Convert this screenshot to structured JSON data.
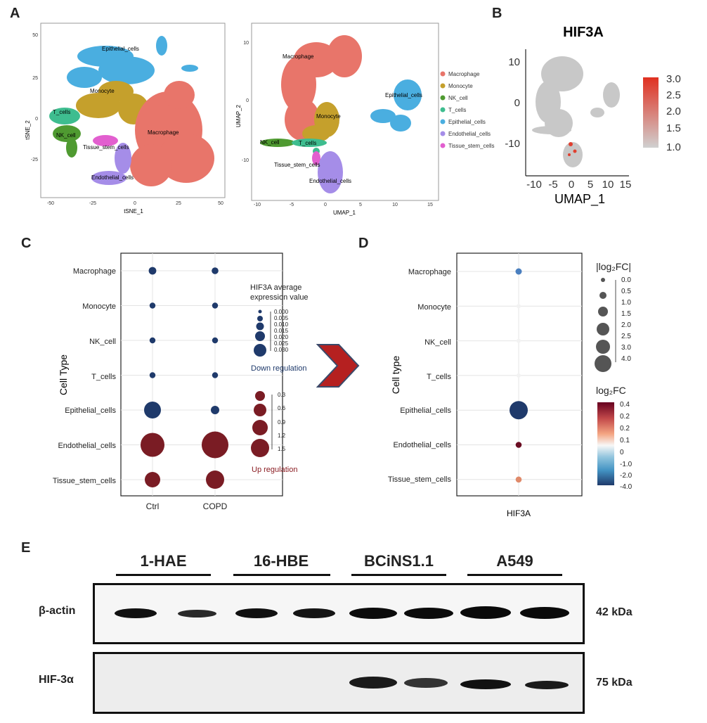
{
  "panels": {
    "a": "A",
    "b": "B",
    "c": "C",
    "d": "D",
    "e": "E"
  },
  "tsne": {
    "xlabel": "tSNE_1",
    "ylabel": "tSNE_2",
    "xticks": [
      "-50",
      "-25",
      "0",
      "25",
      "50"
    ],
    "yticks": [
      "50",
      "25",
      "0",
      "-25"
    ]
  },
  "umap": {
    "xlabel": "UMAP_1",
    "ylabel": "UMAP_2",
    "xticks": [
      "-10",
      "-5",
      "0",
      "5",
      "10",
      "15"
    ],
    "yticks": [
      "10",
      "0",
      "-10"
    ]
  },
  "cluster_labels": [
    "Macrophage",
    "Monocyte",
    "NK_cell",
    "T_cells",
    "Epithelial_cells",
    "Endothelial_cells",
    "Tissue_stem_cells"
  ],
  "cluster_colors": [
    "#e8756a",
    "#c5a02c",
    "#4f9a31",
    "#3ebd8f",
    "#4aaee0",
    "#a58de8",
    "#e25fcf"
  ],
  "panel_b": {
    "title": "HIF3A",
    "xlabel": "UMAP_1",
    "xticks": [
      "-10",
      "-5",
      "0",
      "5",
      "10",
      "15"
    ],
    "yticks": [
      "10",
      "0",
      "-10"
    ],
    "colorbar_ticks": [
      "3.0",
      "2.5",
      "2.0",
      "1.5",
      "1.0"
    ]
  },
  "panel_c": {
    "ylabel": "Cell Type",
    "categories": [
      "Macrophage",
      "Monocyte",
      "NK_cell",
      "T_cells",
      "Epithelial_cells",
      "Endothelial_cells",
      "Tissue_stem_cells"
    ],
    "xcategories": [
      "Ctrl",
      "COPD"
    ],
    "size_legend_title_1": "HIF3A average",
    "size_legend_title_2": "expression value",
    "down_ticks": [
      "0.000",
      "0.005",
      "0.010",
      "0.015",
      "0.020",
      "0.025",
      "0.030"
    ],
    "down_label": "Down regulation",
    "up_ticks": [
      "0.3",
      "0.6",
      "0.9",
      "1.2",
      "1.5"
    ],
    "up_label": "Up regulation"
  },
  "panel_d": {
    "ylabel": "Cell type",
    "xcategory": "HIF3A",
    "size_legend_title": "|log₂FC|",
    "size_ticks": [
      "0.0",
      "0.5",
      "1.0",
      "1.5",
      "2.0",
      "2.5",
      "3.0",
      "4.0"
    ],
    "color_legend_title": "log₂FC",
    "color_ticks": [
      "0.4",
      "0.2",
      "0.2",
      "0.1",
      "0",
      "-1.0",
      "-2.0",
      "-4.0"
    ]
  },
  "panel_e": {
    "groups": [
      "1-HAE",
      "16-HBE",
      "BCiNS1.1",
      "A549"
    ],
    "rows": [
      {
        "label": "β-actin",
        "kda": "42 kDa"
      },
      {
        "label": "HIF-3α",
        "kda": "75 kDa"
      }
    ]
  },
  "chart_data": [
    {
      "type": "scatter",
      "title": "",
      "xlabel": "Cell type",
      "ylabel": "Cell Type",
      "x": [
        "Ctrl",
        "COPD"
      ],
      "categories": [
        "Macrophage",
        "Monocyte",
        "NK_cell",
        "T_cells",
        "Epithelial_cells",
        "Endothelial_cells",
        "Tissue_stem_cells"
      ],
      "series": [
        {
          "name": "Ctrl",
          "direction": [
            "down",
            "down",
            "down",
            "down",
            "down",
            "up",
            "up"
          ],
          "values": [
            0.008,
            0.004,
            0.004,
            0.004,
            0.03,
            1.3,
            0.7
          ]
        },
        {
          "name": "COPD",
          "direction": [
            "down",
            "down",
            "down",
            "down",
            "down",
            "up",
            "up"
          ],
          "values": [
            0.006,
            0.004,
            0.004,
            0.004,
            0.01,
            1.5,
            0.9
          ]
        }
      ]
    },
    {
      "type": "scatter",
      "xlabel": "HIF3A",
      "ylabel": "Cell type",
      "categories": [
        "Macrophage",
        "Monocyte",
        "NK_cell",
        "T_cells",
        "Epithelial_cells",
        "Endothelial_cells",
        "Tissue_stem_cells"
      ],
      "abs_log2fc": [
        0.6,
        0.0,
        0.0,
        0.0,
        4.0,
        0.5,
        0.5
      ],
      "log2fc": [
        -1.0,
        0.0,
        0.0,
        0.0,
        -4.0,
        0.4,
        0.2
      ]
    }
  ]
}
